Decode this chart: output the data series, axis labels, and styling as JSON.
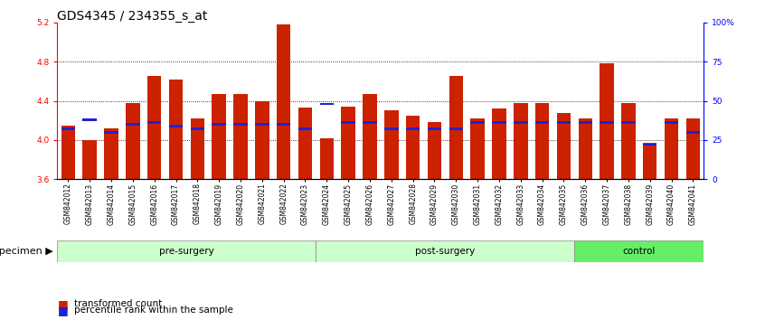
{
  "title": "GDS4345 / 234355_s_at",
  "samples": [
    "GSM842012",
    "GSM842013",
    "GSM842014",
    "GSM842015",
    "GSM842016",
    "GSM842017",
    "GSM842018",
    "GSM842019",
    "GSM842020",
    "GSM842021",
    "GSM842022",
    "GSM842023",
    "GSM842024",
    "GSM842025",
    "GSM842026",
    "GSM842027",
    "GSM842028",
    "GSM842029",
    "GSM842030",
    "GSM842031",
    "GSM842032",
    "GSM842033",
    "GSM842034",
    "GSM842035",
    "GSM842036",
    "GSM842037",
    "GSM842038",
    "GSM842039",
    "GSM842040",
    "GSM842041"
  ],
  "transformed_counts": [
    4.15,
    4.0,
    4.12,
    4.38,
    4.65,
    4.62,
    4.22,
    4.47,
    4.47,
    4.4,
    5.18,
    4.33,
    4.02,
    4.34,
    4.47,
    4.3,
    4.25,
    4.18,
    4.65,
    4.22,
    4.32,
    4.38,
    4.38,
    4.28,
    4.22,
    4.78,
    4.38,
    3.97,
    4.22,
    4.22
  ],
  "percentile_ranks": [
    32,
    38,
    30,
    35,
    36,
    34,
    32,
    35,
    35,
    35,
    35,
    32,
    48,
    36,
    36,
    32,
    32,
    32,
    32,
    36,
    36,
    36,
    36,
    36,
    36,
    36,
    36,
    22,
    36,
    30
  ],
  "group_colors": [
    "#ccffcc",
    "#ccffcc",
    "#66ee66"
  ],
  "group_labels": [
    "pre-surgery",
    "post-surgery",
    "control"
  ],
  "group_ranges": [
    [
      0,
      12
    ],
    [
      12,
      24
    ],
    [
      24,
      30
    ]
  ],
  "ymin": 3.6,
  "ymax": 5.2,
  "yticks": [
    3.6,
    4.0,
    4.4,
    4.8,
    5.2
  ],
  "right_yticks": [
    0,
    25,
    50,
    75,
    100
  ],
  "right_ytick_labels": [
    "0",
    "25",
    "50",
    "75",
    "100%"
  ],
  "bar_color": "#cc2200",
  "blue_color": "#2222cc",
  "bar_width": 0.65,
  "base_value": 3.6,
  "legend_items": [
    "transformed count",
    "percentile rank within the sample"
  ],
  "legend_colors": [
    "#cc2200",
    "#2222cc"
  ],
  "title_fontsize": 10,
  "tick_fontsize": 6.5,
  "xtick_fontsize": 5.5
}
